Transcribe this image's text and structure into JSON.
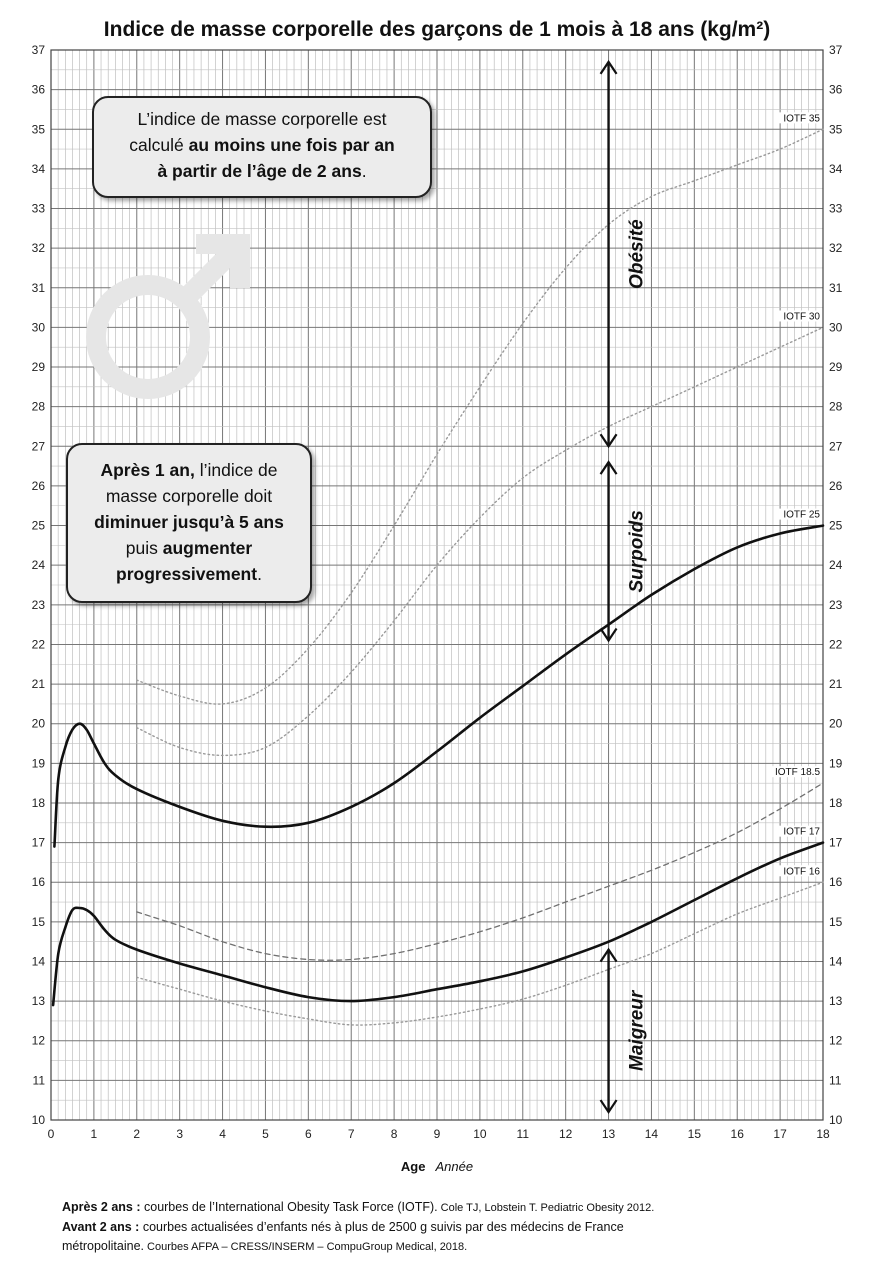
{
  "chart_data": {
    "type": "line",
    "title": "Indice de masse corporelle des garçons de 1 mois à 18 ans (kg/m²)",
    "xlabel_bold": "Age",
    "xlabel_italic": "Année",
    "xlim": [
      0,
      18
    ],
    "ylim": [
      10,
      37
    ],
    "x_ticks": [
      "0",
      "1",
      "2",
      "3",
      "4",
      "5",
      "6",
      "7",
      "8",
      "9",
      "10",
      "11",
      "12",
      "13",
      "14",
      "15",
      "16",
      "17",
      "18"
    ],
    "y_ticks": [
      "10",
      "11",
      "12",
      "13",
      "14",
      "15",
      "16",
      "17",
      "18",
      "19",
      "20",
      "21",
      "22",
      "23",
      "24",
      "25",
      "26",
      "27",
      "28",
      "29",
      "30",
      "31",
      "32",
      "33",
      "34",
      "35",
      "36",
      "37"
    ],
    "grid": true,
    "series": [
      {
        "label": "",
        "style": "solid-thick",
        "points": [
          [
            0.08,
            16.9
          ],
          [
            0.17,
            18.6
          ],
          [
            0.33,
            19.4
          ],
          [
            0.5,
            19.85
          ],
          [
            0.67,
            20.0
          ],
          [
            0.83,
            19.85
          ],
          [
            1,
            19.5
          ],
          [
            1.25,
            19.0
          ],
          [
            1.5,
            18.7
          ],
          [
            2,
            18.35
          ],
          [
            3,
            17.9
          ],
          [
            4,
            17.55
          ],
          [
            5,
            17.4
          ],
          [
            6,
            17.5
          ],
          [
            7,
            17.9
          ],
          [
            8,
            18.5
          ],
          [
            9,
            19.3
          ],
          [
            10,
            20.15
          ],
          [
            11,
            20.95
          ],
          [
            12,
            21.75
          ],
          [
            13,
            22.5
          ],
          [
            14,
            23.25
          ],
          [
            15,
            23.9
          ],
          [
            16,
            24.45
          ],
          [
            17,
            24.8
          ],
          [
            18,
            25.0
          ]
        ]
      },
      {
        "label": "",
        "style": "solid-thick",
        "points": [
          [
            0.05,
            12.9
          ],
          [
            0.17,
            14.2
          ],
          [
            0.33,
            14.85
          ],
          [
            0.5,
            15.3
          ],
          [
            0.67,
            15.35
          ],
          [
            0.83,
            15.3
          ],
          [
            1,
            15.15
          ],
          [
            1.25,
            14.8
          ],
          [
            1.5,
            14.55
          ],
          [
            2,
            14.3
          ],
          [
            3,
            13.95
          ],
          [
            4,
            13.65
          ],
          [
            5,
            13.35
          ],
          [
            6,
            13.1
          ],
          [
            7,
            13.0
          ],
          [
            8,
            13.1
          ],
          [
            9,
            13.3
          ],
          [
            10,
            13.5
          ],
          [
            11,
            13.75
          ],
          [
            12,
            14.1
          ],
          [
            13,
            14.5
          ],
          [
            14,
            15.0
          ],
          [
            15,
            15.55
          ],
          [
            16,
            16.1
          ],
          [
            17,
            16.6
          ],
          [
            18,
            17.0
          ]
        ]
      },
      {
        "label": "IOTF 35",
        "style": "dotted",
        "points": [
          [
            2,
            21.1
          ],
          [
            3,
            20.7
          ],
          [
            4,
            20.5
          ],
          [
            5,
            20.9
          ],
          [
            6,
            21.9
          ],
          [
            7,
            23.3
          ],
          [
            8,
            25.0
          ],
          [
            9,
            26.8
          ],
          [
            10,
            28.5
          ],
          [
            11,
            30.1
          ],
          [
            12,
            31.5
          ],
          [
            13,
            32.6
          ],
          [
            14,
            33.3
          ],
          [
            15,
            33.7
          ],
          [
            16,
            34.1
          ],
          [
            17,
            34.5
          ],
          [
            18,
            35.0
          ]
        ]
      },
      {
        "label": "IOTF 30",
        "style": "dotted",
        "points": [
          [
            2,
            19.9
          ],
          [
            3,
            19.4
          ],
          [
            4,
            19.2
          ],
          [
            5,
            19.4
          ],
          [
            6,
            20.2
          ],
          [
            7,
            21.3
          ],
          [
            8,
            22.6
          ],
          [
            9,
            24.0
          ],
          [
            10,
            25.2
          ],
          [
            11,
            26.2
          ],
          [
            12,
            26.9
          ],
          [
            13,
            27.5
          ],
          [
            14,
            28.0
          ],
          [
            15,
            28.5
          ],
          [
            16,
            29.0
          ],
          [
            17,
            29.5
          ],
          [
            18,
            30.0
          ]
        ]
      },
      {
        "label": "IOTF 25",
        "style": "hidden",
        "points": []
      },
      {
        "label": "IOTF 18.5",
        "style": "dashed",
        "points": [
          [
            2,
            15.25
          ],
          [
            3,
            14.9
          ],
          [
            4,
            14.5
          ],
          [
            5,
            14.2
          ],
          [
            6,
            14.05
          ],
          [
            7,
            14.05
          ],
          [
            8,
            14.2
          ],
          [
            9,
            14.45
          ],
          [
            10,
            14.75
          ],
          [
            11,
            15.1
          ],
          [
            12,
            15.5
          ],
          [
            13,
            15.9
          ],
          [
            14,
            16.3
          ],
          [
            15,
            16.75
          ],
          [
            16,
            17.25
          ],
          [
            17,
            17.85
          ],
          [
            18,
            18.5
          ]
        ]
      },
      {
        "label": "IOTF 17",
        "style": "hidden",
        "points": []
      },
      {
        "label": "IOTF 16",
        "style": "dotted",
        "points": [
          [
            2,
            13.6
          ],
          [
            3,
            13.3
          ],
          [
            4,
            13.0
          ],
          [
            5,
            12.75
          ],
          [
            6,
            12.55
          ],
          [
            7,
            12.4
          ],
          [
            8,
            12.45
          ],
          [
            9,
            12.6
          ],
          [
            10,
            12.8
          ],
          [
            11,
            13.05
          ],
          [
            12,
            13.4
          ],
          [
            13,
            13.8
          ],
          [
            14,
            14.2
          ],
          [
            15,
            14.7
          ],
          [
            16,
            15.2
          ],
          [
            17,
            15.6
          ],
          [
            18,
            16.0
          ]
        ]
      }
    ],
    "curve_labels": [
      {
        "text": "IOTF 35",
        "y": 35.2
      },
      {
        "text": "IOTF 30",
        "y": 30.2
      },
      {
        "text": "IOTF 25",
        "y": 25.2
      },
      {
        "text": "IOTF 18.5",
        "y": 18.7
      },
      {
        "text": "IOTF 17",
        "y": 17.2
      },
      {
        "text": "IOTF 16",
        "y": 16.2
      }
    ],
    "zones": [
      {
        "label": "Obésité",
        "x": 13,
        "y_from": 27.0,
        "y_to": 36.7
      },
      {
        "label": "Surpoids",
        "x": 13,
        "y_from": 22.1,
        "y_to": 26.6
      },
      {
        "label": "Maigreur",
        "x": 13,
        "y_from": 10.2,
        "y_to": 14.3
      }
    ]
  },
  "notes": {
    "box1": {
      "line1": "L’indice de masse corporelle est",
      "line2_plain": "calculé ",
      "line2_bold": "au moins une fois par an",
      "line3_bold": "à partir de l’âge de 2 ans",
      "line3_end": "."
    },
    "box2": {
      "line1_bold": "Après 1 an,",
      "line1_plain": " l’indice de",
      "line2": "masse corporelle doit",
      "line3_bold": "diminuer jusqu’à 5 ans",
      "line4_plain": "puis ",
      "line4_bold": "augmenter",
      "line5_bold": "progressivement",
      "line5_end": "."
    }
  },
  "footer": {
    "line1_bold": "Après 2 ans :",
    "line1_plain": " courbes de l’International Obesity Task Force (IOTF).",
    "line1_small": " Cole TJ, Lobstein T. Pediatric Obesity 2012.",
    "line2_bold": "Avant 2 ans :",
    "line2_plain": " courbes actualisées d’enfants nés à plus de 2500 g suivis par des médecins de France",
    "line3_plain": "métropolitaine.",
    "line3_small": " Courbes AFPA – CRESS/INSERM – CompuGroup Medical, 2018."
  },
  "colors": {
    "curve": "#111111",
    "iotf_dotted": "#9a9a9a",
    "iotf_dashed": "#707070",
    "grid": "#9a9a9a",
    "box_fill": "#ececec",
    "symbol": "#e6e6e6"
  },
  "icons": {
    "watermark": "male-symbol-icon"
  }
}
